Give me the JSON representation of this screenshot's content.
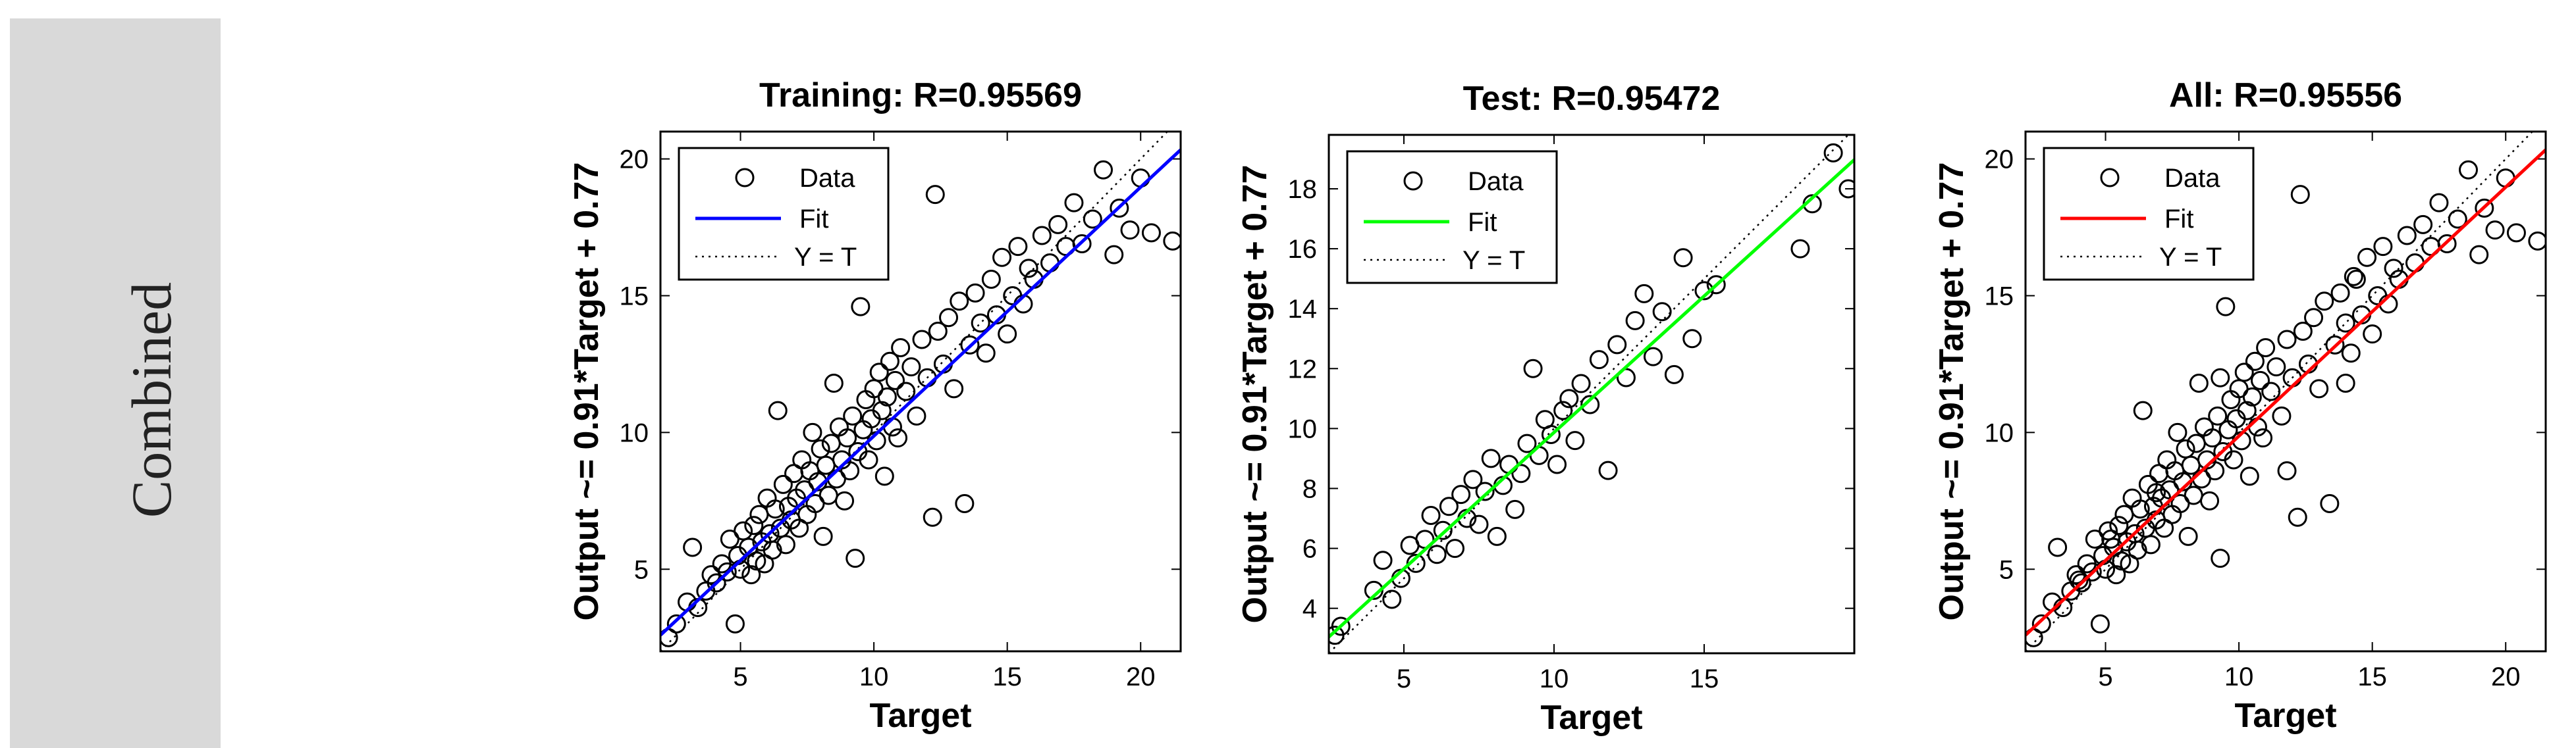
{
  "side_label": "Combined",
  "chart_data": [
    {
      "type": "scatter",
      "title": "Training: R=0.95569",
      "xlabel": "Target",
      "ylabel": "Output ~= 0.91*Target + 0.77",
      "xlim": [
        2,
        21.5
      ],
      "ylim": [
        2,
        21
      ],
      "xticks": [
        5,
        10,
        15,
        20
      ],
      "yticks": [
        5,
        10,
        15,
        20
      ],
      "fit_color": "#0000ff",
      "legend": [
        "Data",
        "Fit",
        "Y = T"
      ],
      "fit": {
        "slope": 0.91,
        "intercept": 0.77
      },
      "points": [
        [
          2.3,
          2.5
        ],
        [
          2.6,
          3.0
        ],
        [
          3.0,
          3.8
        ],
        [
          3.2,
          5.8
        ],
        [
          3.4,
          3.6
        ],
        [
          3.7,
          4.2
        ],
        [
          3.9,
          4.8
        ],
        [
          4.1,
          4.5
        ],
        [
          4.3,
          5.2
        ],
        [
          4.5,
          4.9
        ],
        [
          4.6,
          6.1
        ],
        [
          4.8,
          3.0
        ],
        [
          4.9,
          5.5
        ],
        [
          5.0,
          5.0
        ],
        [
          5.1,
          6.4
        ],
        [
          5.3,
          5.8
        ],
        [
          5.4,
          4.8
        ],
        [
          5.5,
          6.6
        ],
        [
          5.6,
          5.3
        ],
        [
          5.7,
          7.0
        ],
        [
          5.8,
          6.0
        ],
        [
          5.9,
          5.2
        ],
        [
          6.0,
          7.6
        ],
        [
          6.1,
          6.3
        ],
        [
          6.2,
          5.7
        ],
        [
          6.3,
          7.2
        ],
        [
          6.4,
          10.8
        ],
        [
          6.5,
          6.5
        ],
        [
          6.6,
          8.1
        ],
        [
          6.7,
          5.9
        ],
        [
          6.8,
          7.3
        ],
        [
          6.9,
          6.8
        ],
        [
          7.0,
          8.5
        ],
        [
          7.1,
          7.6
        ],
        [
          7.2,
          6.5
        ],
        [
          7.3,
          9.0
        ],
        [
          7.4,
          7.9
        ],
        [
          7.5,
          7.0
        ],
        [
          7.6,
          8.6
        ],
        [
          7.7,
          10.0
        ],
        [
          7.8,
          7.4
        ],
        [
          7.9,
          8.2
        ],
        [
          8.0,
          9.4
        ],
        [
          8.1,
          6.2
        ],
        [
          8.2,
          8.8
        ],
        [
          8.3,
          7.7
        ],
        [
          8.4,
          9.6
        ],
        [
          8.5,
          11.8
        ],
        [
          8.6,
          8.3
        ],
        [
          8.7,
          10.2
        ],
        [
          8.8,
          9.0
        ],
        [
          8.9,
          7.5
        ],
        [
          9.0,
          9.8
        ],
        [
          9.1,
          8.6
        ],
        [
          9.2,
          10.6
        ],
        [
          9.3,
          5.4
        ],
        [
          9.4,
          9.3
        ],
        [
          9.5,
          14.6
        ],
        [
          9.6,
          10.1
        ],
        [
          9.7,
          11.2
        ],
        [
          9.8,
          9.0
        ],
        [
          9.9,
          10.5
        ],
        [
          10.0,
          11.6
        ],
        [
          10.1,
          9.7
        ],
        [
          10.2,
          12.2
        ],
        [
          10.3,
          10.8
        ],
        [
          10.4,
          8.4
        ],
        [
          10.5,
          11.3
        ],
        [
          10.6,
          12.6
        ],
        [
          10.7,
          10.2
        ],
        [
          10.8,
          11.9
        ],
        [
          10.9,
          9.8
        ],
        [
          11.0,
          13.1
        ],
        [
          11.2,
          11.5
        ],
        [
          11.4,
          12.4
        ],
        [
          11.6,
          10.6
        ],
        [
          11.8,
          13.4
        ],
        [
          12.0,
          12.0
        ],
        [
          12.2,
          6.9
        ],
        [
          12.3,
          18.7
        ],
        [
          12.4,
          13.7
        ],
        [
          12.6,
          12.5
        ],
        [
          12.8,
          14.2
        ],
        [
          13.0,
          11.6
        ],
        [
          13.2,
          14.8
        ],
        [
          13.4,
          7.4
        ],
        [
          13.6,
          13.2
        ],
        [
          13.8,
          15.1
        ],
        [
          14.0,
          14.0
        ],
        [
          14.2,
          12.9
        ],
        [
          14.4,
          15.6
        ],
        [
          14.6,
          14.3
        ],
        [
          14.8,
          16.4
        ],
        [
          15.0,
          13.6
        ],
        [
          15.2,
          15.0
        ],
        [
          15.4,
          16.8
        ],
        [
          15.6,
          14.7
        ],
        [
          15.8,
          16.0
        ],
        [
          16.0,
          15.6
        ],
        [
          16.3,
          17.2
        ],
        [
          16.6,
          16.2
        ],
        [
          16.9,
          17.6
        ],
        [
          17.2,
          16.8
        ],
        [
          17.5,
          18.4
        ],
        [
          17.8,
          16.9
        ],
        [
          18.2,
          17.8
        ],
        [
          18.6,
          19.6
        ],
        [
          19.0,
          16.5
        ],
        [
          19.2,
          18.2
        ],
        [
          19.6,
          17.4
        ],
        [
          20.0,
          19.3
        ],
        [
          20.4,
          17.3
        ],
        [
          21.2,
          17.0
        ]
      ]
    },
    {
      "type": "scatter",
      "title": "Test: R=0.95472",
      "xlabel": "Target",
      "ylabel": "Output ~= 0.91*Target + 0.77",
      "xlim": [
        2.5,
        20
      ],
      "ylim": [
        2.5,
        19.8
      ],
      "xticks": [
        5,
        10,
        15
      ],
      "yticks": [
        4,
        6,
        8,
        10,
        12,
        14,
        16,
        18
      ],
      "fit_color": "#00ff00",
      "legend": [
        "Data",
        "Fit",
        "Y = T"
      ],
      "fit": {
        "slope": 0.91,
        "intercept": 0.77
      },
      "points": [
        [
          2.7,
          3.1
        ],
        [
          2.9,
          3.4
        ],
        [
          4.0,
          4.6
        ],
        [
          4.3,
          5.6
        ],
        [
          4.6,
          4.3
        ],
        [
          4.9,
          5.0
        ],
        [
          5.2,
          6.1
        ],
        [
          5.4,
          5.5
        ],
        [
          5.7,
          6.3
        ],
        [
          5.9,
          7.1
        ],
        [
          6.1,
          5.8
        ],
        [
          6.3,
          6.6
        ],
        [
          6.5,
          7.4
        ],
        [
          6.7,
          6.0
        ],
        [
          6.9,
          7.8
        ],
        [
          7.1,
          7.0
        ],
        [
          7.3,
          8.3
        ],
        [
          7.5,
          6.8
        ],
        [
          7.7,
          7.9
        ],
        [
          7.9,
          9.0
        ],
        [
          8.1,
          6.4
        ],
        [
          8.3,
          8.1
        ],
        [
          8.5,
          8.8
        ],
        [
          8.7,
          7.3
        ],
        [
          8.9,
          8.5
        ],
        [
          9.1,
          9.5
        ],
        [
          9.3,
          12.0
        ],
        [
          9.5,
          9.1
        ],
        [
          9.7,
          10.3
        ],
        [
          9.9,
          9.8
        ],
        [
          10.1,
          8.8
        ],
        [
          10.3,
          10.6
        ],
        [
          10.5,
          11.0
        ],
        [
          10.7,
          9.6
        ],
        [
          10.9,
          11.5
        ],
        [
          11.2,
          10.8
        ],
        [
          11.5,
          12.3
        ],
        [
          11.8,
          8.6
        ],
        [
          12.1,
          12.8
        ],
        [
          12.4,
          11.7
        ],
        [
          12.7,
          13.6
        ],
        [
          13.0,
          14.5
        ],
        [
          13.3,
          12.4
        ],
        [
          13.6,
          13.9
        ],
        [
          14.0,
          11.8
        ],
        [
          14.3,
          15.7
        ],
        [
          14.6,
          13.0
        ],
        [
          15.0,
          14.6
        ],
        [
          15.4,
          14.8
        ],
        [
          18.2,
          16.0
        ],
        [
          18.6,
          17.5
        ],
        [
          19.3,
          19.2
        ],
        [
          19.8,
          18.0
        ]
      ]
    },
    {
      "type": "scatter",
      "title": "All: R=0.95556",
      "xlabel": "Target",
      "ylabel": "Output ~= 0.91*Target + 0.77",
      "xlim": [
        2,
        21.5
      ],
      "ylim": [
        2,
        21
      ],
      "xticks": [
        5,
        10,
        15,
        20
      ],
      "yticks": [
        5,
        10,
        15,
        20
      ],
      "fit_color": "#ff0000",
      "legend": [
        "Data",
        "Fit",
        "Y = T"
      ],
      "fit": {
        "slope": 0.91,
        "intercept": 0.77
      },
      "points": [
        [
          2.3,
          2.5
        ],
        [
          2.6,
          3.0
        ],
        [
          3.0,
          3.8
        ],
        [
          3.2,
          5.8
        ],
        [
          3.4,
          3.6
        ],
        [
          3.7,
          4.2
        ],
        [
          3.9,
          4.8
        ],
        [
          4.1,
          4.5
        ],
        [
          4.3,
          5.2
        ],
        [
          4.5,
          4.9
        ],
        [
          4.6,
          6.1
        ],
        [
          4.8,
          3.0
        ],
        [
          4.9,
          5.5
        ],
        [
          5.0,
          5.0
        ],
        [
          5.1,
          6.4
        ],
        [
          5.3,
          5.8
        ],
        [
          5.4,
          4.8
        ],
        [
          5.5,
          6.6
        ],
        [
          5.6,
          5.3
        ],
        [
          5.7,
          7.0
        ],
        [
          5.8,
          6.0
        ],
        [
          5.9,
          5.2
        ],
        [
          6.0,
          7.6
        ],
        [
          6.1,
          6.3
        ],
        [
          6.2,
          5.7
        ],
        [
          6.3,
          7.2
        ],
        [
          6.4,
          10.8
        ],
        [
          6.5,
          6.5
        ],
        [
          6.6,
          8.1
        ],
        [
          6.7,
          5.9
        ],
        [
          6.8,
          7.3
        ],
        [
          6.9,
          6.8
        ],
        [
          7.0,
          8.5
        ],
        [
          7.1,
          7.6
        ],
        [
          7.2,
          6.5
        ],
        [
          7.3,
          9.0
        ],
        [
          7.4,
          7.9
        ],
        [
          7.5,
          7.0
        ],
        [
          7.6,
          8.6
        ],
        [
          7.7,
          10.0
        ],
        [
          7.8,
          7.4
        ],
        [
          7.9,
          8.2
        ],
        [
          8.0,
          9.4
        ],
        [
          8.1,
          6.2
        ],
        [
          8.2,
          8.8
        ],
        [
          8.3,
          7.7
        ],
        [
          8.4,
          9.6
        ],
        [
          8.5,
          11.8
        ],
        [
          8.6,
          8.3
        ],
        [
          8.7,
          10.2
        ],
        [
          8.8,
          9.0
        ],
        [
          8.9,
          7.5
        ],
        [
          9.0,
          9.8
        ],
        [
          9.1,
          8.6
        ],
        [
          9.2,
          10.6
        ],
        [
          9.3,
          5.4
        ],
        [
          9.4,
          9.3
        ],
        [
          9.5,
          14.6
        ],
        [
          9.6,
          10.1
        ],
        [
          9.7,
          11.2
        ],
        [
          9.8,
          9.0
        ],
        [
          9.9,
          10.5
        ],
        [
          10.0,
          11.6
        ],
        [
          10.1,
          9.7
        ],
        [
          10.2,
          12.2
        ],
        [
          10.3,
          10.8
        ],
        [
          10.4,
          8.4
        ],
        [
          10.5,
          11.3
        ],
        [
          10.6,
          12.6
        ],
        [
          10.7,
          10.2
        ],
        [
          10.8,
          11.9
        ],
        [
          10.9,
          9.8
        ],
        [
          11.0,
          13.1
        ],
        [
          11.2,
          11.5
        ],
        [
          11.4,
          12.4
        ],
        [
          11.6,
          10.6
        ],
        [
          11.8,
          13.4
        ],
        [
          12.0,
          12.0
        ],
        [
          12.2,
          6.9
        ],
        [
          12.3,
          18.7
        ],
        [
          12.4,
          13.7
        ],
        [
          12.6,
          12.5
        ],
        [
          12.8,
          14.2
        ],
        [
          13.0,
          11.6
        ],
        [
          13.2,
          14.8
        ],
        [
          13.4,
          7.4
        ],
        [
          13.6,
          13.2
        ],
        [
          13.8,
          15.1
        ],
        [
          14.0,
          14.0
        ],
        [
          14.2,
          12.9
        ],
        [
          14.4,
          15.6
        ],
        [
          14.6,
          14.3
        ],
        [
          14.8,
          16.4
        ],
        [
          15.0,
          13.6
        ],
        [
          15.2,
          15.0
        ],
        [
          15.4,
          16.8
        ],
        [
          15.6,
          14.7
        ],
        [
          15.8,
          16.0
        ],
        [
          16.0,
          15.6
        ],
        [
          16.3,
          17.2
        ],
        [
          16.6,
          16.2
        ],
        [
          16.9,
          17.6
        ],
        [
          17.2,
          16.8
        ],
        [
          17.5,
          18.4
        ],
        [
          17.8,
          16.9
        ],
        [
          18.2,
          17.8
        ],
        [
          18.6,
          19.6
        ],
        [
          19.0,
          16.5
        ],
        [
          19.2,
          18.2
        ],
        [
          19.6,
          17.4
        ],
        [
          20.0,
          19.3
        ],
        [
          20.4,
          17.3
        ],
        [
          21.2,
          17.0
        ],
        [
          4.0,
          4.6
        ],
        [
          5.2,
          6.1
        ],
        [
          6.9,
          7.8
        ],
        [
          9.3,
          12.0
        ],
        [
          11.8,
          8.6
        ],
        [
          14.0,
          11.8
        ],
        [
          14.3,
          15.7
        ]
      ]
    }
  ]
}
